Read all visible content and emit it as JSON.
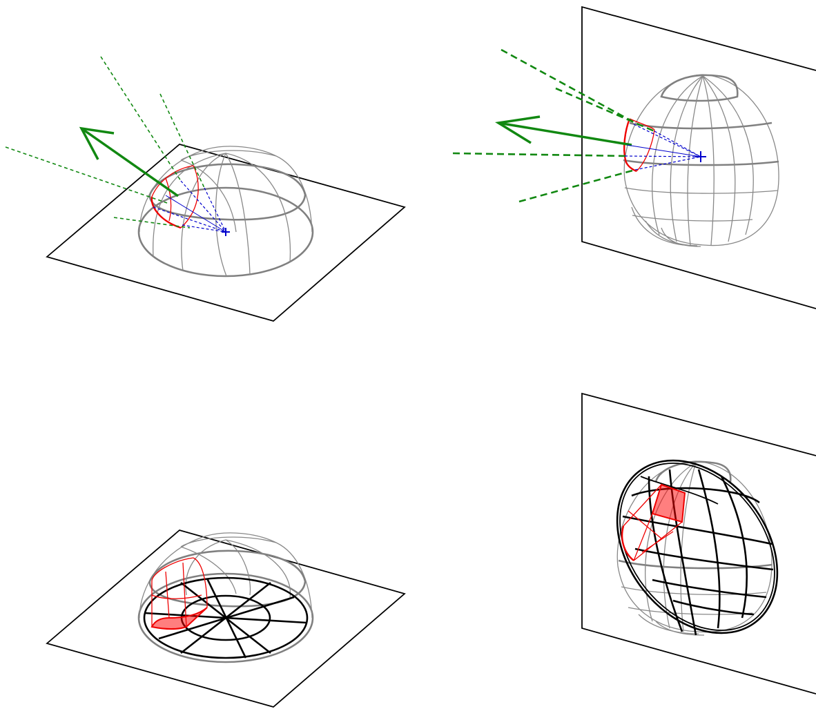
{
  "figure": {
    "panels": [
      {
        "id": "top-left",
        "plane": "horizontal",
        "sphere": "hemisphere",
        "rays": "green-dashed",
        "arrow": "green"
      },
      {
        "id": "top-right",
        "plane": "vertical",
        "sphere": "sphere",
        "rays": "green-dashed",
        "arrow": "green"
      },
      {
        "id": "bottom-left",
        "plane": "horizontal",
        "sphere": "hemisphere",
        "projection": "polar-grid",
        "highlight": "red-patch"
      },
      {
        "id": "bottom-right",
        "plane": "vertical",
        "sphere": "sphere",
        "projection": "black-grid",
        "highlight": "red-patch"
      }
    ],
    "colors": {
      "frame": "#000000",
      "wireframe": "#888888",
      "ray": "#118811",
      "highlight": "#ee0000",
      "center": "#0000cc"
    }
  }
}
